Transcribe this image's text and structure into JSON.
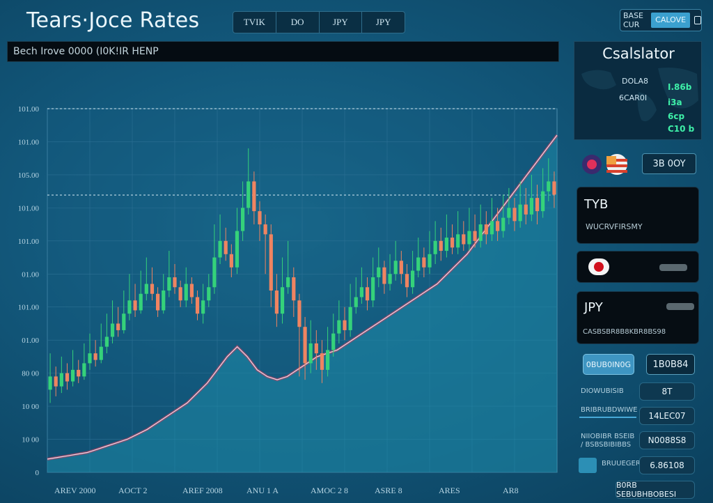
{
  "app": {
    "title": "Tears·Joce Rates"
  },
  "tabs": [
    "TVIK",
    "DO",
    "JPY",
    "JPY"
  ],
  "top_right": {
    "label": "BASE CUR",
    "button": "CALOVE",
    "icon": "window-icon"
  },
  "ticker": {
    "text": "Bech Irove 0000 (I0K!IR HENP"
  },
  "colors": {
    "up": "#35d27a",
    "down": "#ef8461",
    "accent": "#3ba0cf",
    "panel": "#060d13"
  },
  "chart_data": {
    "type": "candlestick",
    "y_tick_labels": [
      "101.00",
      "101.00",
      "105.00",
      "101.00",
      "101.00",
      "01.00",
      "101.00",
      "01.00",
      "80 00",
      "10 00",
      "10 00",
      "0"
    ],
    "x_tick_labels": [
      "AREV 2000",
      "AOCT 2",
      "AREF 2008",
      "ANU 1 A",
      "AMOC 2 8",
      "ASRE 8",
      "ARES",
      "AR8"
    ],
    "candles": [
      {
        "o": 50,
        "c": 58,
        "h": 72,
        "l": 42
      },
      {
        "o": 58,
        "c": 52,
        "h": 64,
        "l": 46
      },
      {
        "o": 52,
        "c": 60,
        "h": 70,
        "l": 48
      },
      {
        "o": 60,
        "c": 55,
        "h": 66,
        "l": 50
      },
      {
        "o": 55,
        "c": 62,
        "h": 74,
        "l": 52
      },
      {
        "o": 62,
        "c": 58,
        "h": 68,
        "l": 54
      },
      {
        "o": 58,
        "c": 66,
        "h": 78,
        "l": 56
      },
      {
        "o": 66,
        "c": 72,
        "h": 84,
        "l": 62
      },
      {
        "o": 72,
        "c": 68,
        "h": 80,
        "l": 64
      },
      {
        "o": 68,
        "c": 76,
        "h": 90,
        "l": 66
      },
      {
        "o": 76,
        "c": 82,
        "h": 96,
        "l": 72
      },
      {
        "o": 82,
        "c": 90,
        "h": 104,
        "l": 78
      },
      {
        "o": 90,
        "c": 86,
        "h": 100,
        "l": 82
      },
      {
        "o": 86,
        "c": 96,
        "h": 110,
        "l": 84
      },
      {
        "o": 96,
        "c": 104,
        "h": 120,
        "l": 92
      },
      {
        "o": 104,
        "c": 98,
        "h": 114,
        "l": 94
      },
      {
        "o": 98,
        "c": 108,
        "h": 122,
        "l": 96
      },
      {
        "o": 108,
        "c": 114,
        "h": 130,
        "l": 104
      },
      {
        "o": 114,
        "c": 108,
        "h": 124,
        "l": 104
      },
      {
        "o": 108,
        "c": 98,
        "h": 112,
        "l": 94
      },
      {
        "o": 98,
        "c": 110,
        "h": 120,
        "l": 96
      },
      {
        "o": 110,
        "c": 118,
        "h": 134,
        "l": 106
      },
      {
        "o": 118,
        "c": 112,
        "h": 126,
        "l": 108
      },
      {
        "o": 112,
        "c": 104,
        "h": 116,
        "l": 100
      },
      {
        "o": 104,
        "c": 114,
        "h": 124,
        "l": 100
      },
      {
        "o": 114,
        "c": 106,
        "h": 118,
        "l": 102
      },
      {
        "o": 106,
        "c": 96,
        "h": 110,
        "l": 92
      },
      {
        "o": 96,
        "c": 104,
        "h": 114,
        "l": 90
      },
      {
        "o": 104,
        "c": 112,
        "h": 120,
        "l": 100
      },
      {
        "o": 112,
        "c": 130,
        "h": 150,
        "l": 108
      },
      {
        "o": 130,
        "c": 140,
        "h": 156,
        "l": 126
      },
      {
        "o": 140,
        "c": 132,
        "h": 148,
        "l": 128
      },
      {
        "o": 132,
        "c": 124,
        "h": 138,
        "l": 118
      },
      {
        "o": 124,
        "c": 146,
        "h": 160,
        "l": 120
      },
      {
        "o": 146,
        "c": 160,
        "h": 176,
        "l": 140
      },
      {
        "o": 160,
        "c": 176,
        "h": 196,
        "l": 156
      },
      {
        "o": 176,
        "c": 158,
        "h": 182,
        "l": 150
      },
      {
        "o": 158,
        "c": 150,
        "h": 164,
        "l": 140
      },
      {
        "o": 150,
        "c": 144,
        "h": 156,
        "l": 120
      },
      {
        "o": 144,
        "c": 110,
        "h": 150,
        "l": 100
      },
      {
        "o": 110,
        "c": 96,
        "h": 120,
        "l": 88
      },
      {
        "o": 96,
        "c": 112,
        "h": 130,
        "l": 90
      },
      {
        "o": 112,
        "c": 118,
        "h": 140,
        "l": 108
      },
      {
        "o": 118,
        "c": 104,
        "h": 124,
        "l": 94
      },
      {
        "o": 104,
        "c": 88,
        "h": 108,
        "l": 58
      },
      {
        "o": 88,
        "c": 66,
        "h": 94,
        "l": 56
      },
      {
        "o": 66,
        "c": 78,
        "h": 92,
        "l": 60
      },
      {
        "o": 78,
        "c": 72,
        "h": 86,
        "l": 62
      },
      {
        "o": 72,
        "c": 62,
        "h": 80,
        "l": 54
      },
      {
        "o": 62,
        "c": 74,
        "h": 88,
        "l": 58
      },
      {
        "o": 74,
        "c": 84,
        "h": 96,
        "l": 70
      },
      {
        "o": 84,
        "c": 92,
        "h": 104,
        "l": 78
      },
      {
        "o": 92,
        "c": 86,
        "h": 100,
        "l": 80
      },
      {
        "o": 86,
        "c": 100,
        "h": 114,
        "l": 82
      },
      {
        "o": 100,
        "c": 106,
        "h": 118,
        "l": 96
      },
      {
        "o": 106,
        "c": 112,
        "h": 124,
        "l": 102
      },
      {
        "o": 112,
        "c": 104,
        "h": 118,
        "l": 98
      },
      {
        "o": 104,
        "c": 118,
        "h": 130,
        "l": 100
      },
      {
        "o": 118,
        "c": 124,
        "h": 136,
        "l": 112
      },
      {
        "o": 124,
        "c": 114,
        "h": 128,
        "l": 108
      },
      {
        "o": 114,
        "c": 120,
        "h": 132,
        "l": 110
      },
      {
        "o": 120,
        "c": 128,
        "h": 140,
        "l": 116
      },
      {
        "o": 128,
        "c": 120,
        "h": 134,
        "l": 114
      },
      {
        "o": 120,
        "c": 112,
        "h": 126,
        "l": 106
      },
      {
        "o": 112,
        "c": 122,
        "h": 134,
        "l": 108
      },
      {
        "o": 122,
        "c": 130,
        "h": 142,
        "l": 118
      },
      {
        "o": 130,
        "c": 124,
        "h": 136,
        "l": 118
      },
      {
        "o": 124,
        "c": 132,
        "h": 146,
        "l": 120
      },
      {
        "o": 132,
        "c": 140,
        "h": 152,
        "l": 126
      },
      {
        "o": 140,
        "c": 134,
        "h": 148,
        "l": 128
      },
      {
        "o": 134,
        "c": 142,
        "h": 156,
        "l": 130
      },
      {
        "o": 142,
        "c": 136,
        "h": 150,
        "l": 132
      },
      {
        "o": 136,
        "c": 144,
        "h": 158,
        "l": 132
      },
      {
        "o": 144,
        "c": 138,
        "h": 152,
        "l": 134
      },
      {
        "o": 138,
        "c": 146,
        "h": 160,
        "l": 134
      },
      {
        "o": 146,
        "c": 140,
        "h": 156,
        "l": 136
      },
      {
        "o": 140,
        "c": 150,
        "h": 162,
        "l": 136
      },
      {
        "o": 150,
        "c": 144,
        "h": 158,
        "l": 138
      },
      {
        "o": 144,
        "c": 152,
        "h": 166,
        "l": 140
      },
      {
        "o": 152,
        "c": 146,
        "h": 160,
        "l": 140
      },
      {
        "o": 146,
        "c": 154,
        "h": 168,
        "l": 142
      },
      {
        "o": 154,
        "c": 160,
        "h": 172,
        "l": 150
      },
      {
        "o": 160,
        "c": 152,
        "h": 166,
        "l": 146
      },
      {
        "o": 152,
        "c": 162,
        "h": 176,
        "l": 148
      },
      {
        "o": 162,
        "c": 156,
        "h": 172,
        "l": 150
      },
      {
        "o": 156,
        "c": 166,
        "h": 180,
        "l": 152
      },
      {
        "o": 166,
        "c": 158,
        "h": 174,
        "l": 150
      },
      {
        "o": 158,
        "c": 170,
        "h": 184,
        "l": 154
      },
      {
        "o": 170,
        "c": 176,
        "h": 190,
        "l": 164
      },
      {
        "o": 176,
        "c": 168,
        "h": 182,
        "l": 160
      }
    ],
    "area_line": [
      8,
      9,
      10,
      11,
      12,
      14,
      16,
      18,
      20,
      23,
      26,
      30,
      34,
      38,
      42,
      48,
      54,
      62,
      70,
      76,
      70,
      62,
      58,
      56,
      58,
      62,
      66,
      70,
      72,
      74,
      78,
      82,
      86,
      90,
      94,
      98,
      102,
      106,
      110,
      114,
      120,
      126,
      132,
      140,
      148,
      156,
      164,
      172,
      180,
      188,
      196,
      204
    ],
    "y_range": [
      0,
      220
    ],
    "grid": true
  },
  "right_panel": {
    "title": "Csalslator",
    "map_labels": {
      "left1": "DOLA8",
      "left2": "6CAR0I",
      "right1": "I.86b",
      "right2": "i3a",
      "right3": "6cp",
      "right4": "C10 b"
    },
    "flags_icon": "country-flags-icon",
    "currency_button": "3B 0OY",
    "card1": {
      "name": "TYB",
      "sub": "WUCRVFIRSMY"
    },
    "card2": {
      "icon": "japan-flag-icon"
    },
    "card3": {
      "name": "JPY",
      "sub": "CASBSBR8B8KBR8BS98"
    },
    "convert_button": "0BUB0IN0G",
    "rate_value": "1B0B84",
    "rows": [
      {
        "label": "DIOWUBISIB",
        "value": "8T"
      },
      {
        "label": "BRIBRUBDWIWE",
        "value": "14LEC07"
      },
      {
        "label": "NIIOBIBR BSEIB / BSBSBIBIBBS",
        "value": "N0088S8"
      },
      {
        "label": "BRUUEGERBS",
        "value": "6.86108"
      }
    ],
    "bottom_button": "B0RB SEBUBHBOBESI"
  }
}
